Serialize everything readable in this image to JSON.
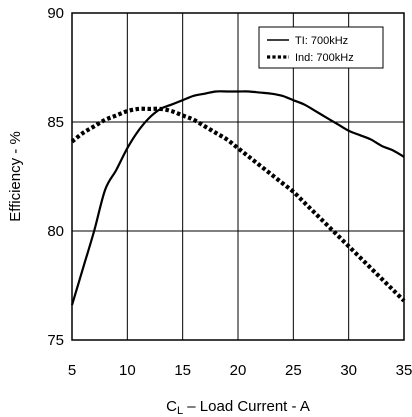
{
  "chart_data": {
    "type": "line",
    "xlabel_main": "C",
    "xlabel_sub": "L",
    "xlabel_rest": " – Load Current - A",
    "ylabel": "Efficiency - %",
    "xlim": [
      5,
      35
    ],
    "ylim": [
      75,
      90
    ],
    "xticks": [
      "5",
      "10",
      "15",
      "20",
      "25",
      "30",
      "35"
    ],
    "yticks": [
      "75",
      "80",
      "85",
      "90"
    ],
    "grid": true,
    "legend_position": "top-right",
    "series": [
      {
        "name": "TI: 700kHz",
        "style": "solid",
        "color": "#000000",
        "x": [
          5,
          6,
          7,
          8,
          9,
          10,
          11,
          12,
          13,
          14,
          15,
          16,
          17,
          18,
          19,
          20,
          21,
          22,
          23,
          24,
          25,
          26,
          27,
          28,
          29,
          30,
          31,
          32,
          33,
          34,
          35
        ],
        "y": [
          76.6,
          78.3,
          80.0,
          81.9,
          82.8,
          83.8,
          84.6,
          85.2,
          85.6,
          85.8,
          86.0,
          86.2,
          86.3,
          86.4,
          86.4,
          86.4,
          86.4,
          86.35,
          86.3,
          86.2,
          86.0,
          85.8,
          85.5,
          85.2,
          84.9,
          84.6,
          84.4,
          84.2,
          83.9,
          83.7,
          83.4
        ]
      },
      {
        "name": "Ind: 700kHz",
        "style": "dotted",
        "color": "#000000",
        "x": [
          5,
          6,
          7,
          8,
          9,
          10,
          11,
          12,
          13,
          14,
          15,
          16,
          17,
          18,
          19,
          20,
          21,
          22,
          23,
          24,
          25,
          26,
          27,
          28,
          29,
          30,
          31,
          32,
          33,
          34,
          35
        ],
        "y": [
          84.1,
          84.5,
          84.8,
          85.1,
          85.3,
          85.5,
          85.6,
          85.6,
          85.6,
          85.5,
          85.3,
          85.1,
          84.8,
          84.5,
          84.2,
          83.8,
          83.4,
          83.0,
          82.6,
          82.2,
          81.8,
          81.3,
          80.8,
          80.3,
          79.8,
          79.3,
          78.8,
          78.3,
          77.8,
          77.3,
          76.8
        ]
      }
    ]
  }
}
